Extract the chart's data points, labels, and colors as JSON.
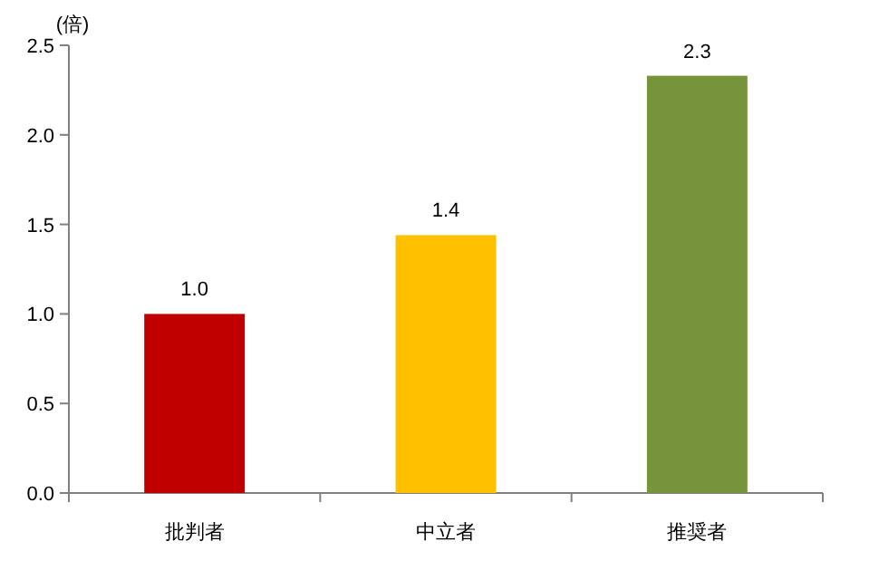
{
  "chart_data": {
    "type": "bar",
    "ylabel": "(倍)",
    "categories": [
      "批判者",
      "中立者",
      "推奨者"
    ],
    "values": [
      1.0,
      1.44,
      2.33
    ],
    "colors": [
      "#c00000",
      "#ffc000",
      "#77933c"
    ],
    "value_labels": [
      "1.0",
      "1.4",
      "2.3"
    ],
    "ylim": [
      0,
      2.5
    ],
    "yticks": [
      {
        "value": 0,
        "label": "0.0"
      },
      {
        "value": 0.5,
        "label": "0.5"
      },
      {
        "value": 1,
        "label": "1.0"
      },
      {
        "value": 1.5,
        "label": "1.5"
      },
      {
        "value": 2,
        "label": "2.0"
      },
      {
        "value": 2.5,
        "label": "2.5"
      }
    ],
    "grid": false
  }
}
